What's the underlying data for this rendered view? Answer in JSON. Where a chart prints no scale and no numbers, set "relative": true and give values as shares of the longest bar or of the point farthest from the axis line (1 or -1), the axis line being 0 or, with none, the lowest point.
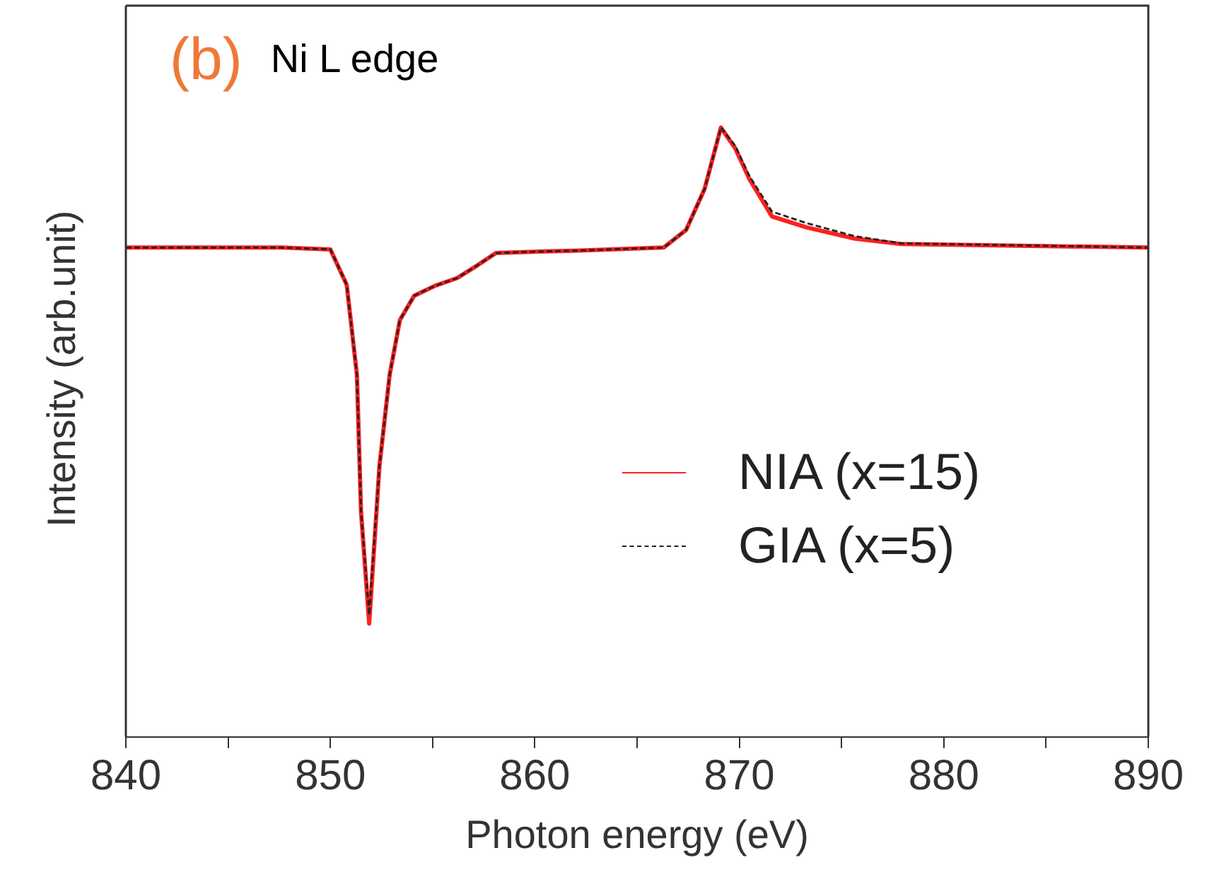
{
  "chart_data": {
    "type": "line",
    "title": "Ni L edge",
    "annotations": [
      "(b)"
    ],
    "xlabel": "Photon energy (eV)",
    "ylabel": "Intensity (arb.unit)",
    "relative": true,
    "xlim": [
      840,
      890
    ],
    "xticks": [
      840,
      {
        "value": 845,
        "label": null
      },
      850,
      {
        "value": 855,
        "label": null
      },
      860,
      {
        "value": 865,
        "label": null
      },
      870,
      {
        "value": 875,
        "label": null
      },
      880,
      {
        "value": 885,
        "label": null
      },
      890
    ],
    "legend": "right",
    "marker": "none",
    "series": [
      {
        "name": "NIA (x=15)",
        "color": "#ff2020",
        "line_style": "solid",
        "x": [
          840,
          847.6,
          850.0,
          850.8,
          851.3,
          851.5,
          851.9,
          852.4,
          852.9,
          853.4,
          854.1,
          855.1,
          856.2,
          857.2,
          858.1,
          859.7,
          862,
          866.3,
          867.4,
          868.3,
          869.1,
          869.8,
          870.5,
          871.6,
          873.3,
          875.6,
          877.9,
          890
        ],
        "values": [
          0.803,
          0.803,
          0.8,
          0.742,
          0.594,
          0.37,
          0.186,
          0.444,
          0.594,
          0.684,
          0.724,
          0.74,
          0.753,
          0.774,
          0.794,
          0.796,
          0.798,
          0.803,
          0.832,
          0.899,
          1,
          0.966,
          0.915,
          0.854,
          0.836,
          0.818,
          0.809,
          0.803
        ]
      },
      {
        "name": "GIA (x=5)",
        "color": "#222222",
        "line_style": "dashed",
        "x": [
          840,
          847.6,
          850.0,
          850.8,
          851.3,
          851.5,
          851.9,
          852.4,
          852.9,
          853.4,
          854.1,
          855.1,
          856.2,
          857.2,
          858.1,
          859.7,
          862,
          866.3,
          867.4,
          868.3,
          869.1,
          869.8,
          870.5,
          871.6,
          873.3,
          875.6,
          877.9,
          890
        ],
        "values": [
          0.803,
          0.803,
          0.8,
          0.742,
          0.594,
          0.37,
          0.2,
          0.444,
          0.594,
          0.684,
          0.724,
          0.74,
          0.753,
          0.774,
          0.794,
          0.796,
          0.798,
          0.803,
          0.832,
          0.899,
          1,
          0.97,
          0.92,
          0.862,
          0.843,
          0.822,
          0.81,
          0.803
        ]
      }
    ]
  }
}
